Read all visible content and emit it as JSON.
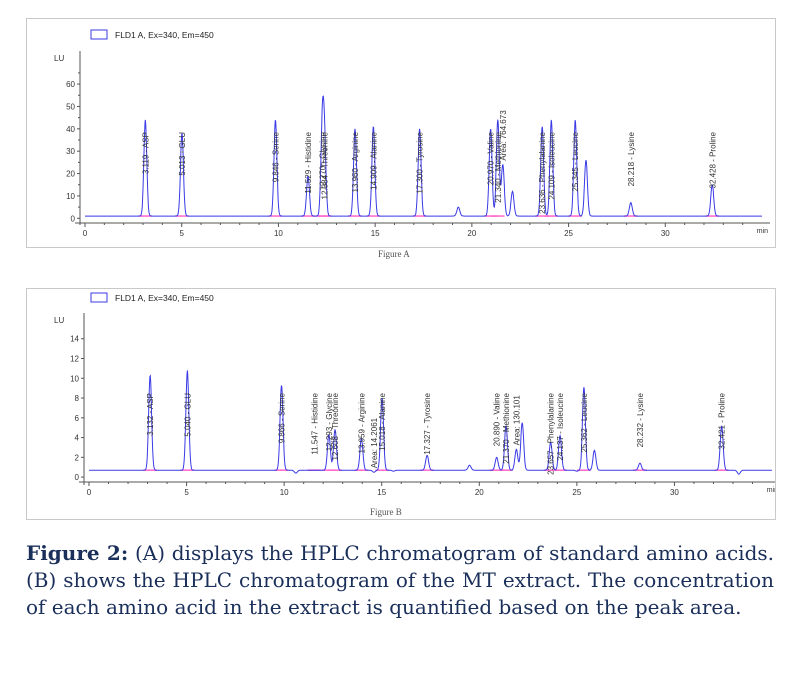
{
  "chart_data": [
    {
      "type": "line",
      "panel": "A",
      "legend": "FLD1 A, Ex=340, Em=450",
      "ylabel": "LU",
      "xlabel": "min",
      "xlim": [
        0,
        35
      ],
      "ylim": [
        -3,
        73
      ],
      "xticks": [
        0,
        5,
        10,
        15,
        20,
        25,
        30
      ],
      "yticks": [
        0,
        10,
        20,
        30,
        40,
        50,
        60
      ],
      "yticks_minor": [
        5,
        15,
        25,
        35,
        45,
        55,
        65
      ],
      "baseline": 1,
      "peaks": [
        {
          "x": 3.119,
          "y": 44,
          "label": "3.119 - ASP"
        },
        {
          "x": 5.013,
          "y": 38,
          "label": "5.013 - GLU"
        },
        {
          "x": 9.846,
          "y": 44,
          "label": "9.846 - Serine"
        },
        {
          "x": 11.529,
          "y": 19,
          "label": "11.529 - Histidine"
        },
        {
          "x": 12.27,
          "y": 41,
          "label": "12.270 - Glycine"
        },
        {
          "x": 12.384,
          "y": 32,
          "label": "12.384 - Threonine"
        },
        {
          "x": 13.96,
          "y": 40,
          "label": "13.960 - Arginine"
        },
        {
          "x": 14.909,
          "y": 41,
          "label": "14.909 - Alanine"
        },
        {
          "x": 17.3,
          "y": 40,
          "label": "17.300 - Tyrosine"
        },
        {
          "x": 19.3,
          "y": 5,
          "label": ""
        },
        {
          "x": 20.97,
          "y": 40,
          "label": "20.970 - Valine"
        },
        {
          "x": 21.34,
          "y": 44,
          "label": "21.340 - Methionine"
        },
        {
          "x": 21.6,
          "y": 24,
          "label": "Area: 764.673"
        },
        {
          "x": 22.1,
          "y": 12,
          "label": ""
        },
        {
          "x": 23.636,
          "y": 41,
          "label": "23.636 - Phenylalanine"
        },
        {
          "x": 24.109,
          "y": 44,
          "label": "24.109 - Isoleucine"
        },
        {
          "x": 25.345,
          "y": 44,
          "label": "25.345 - Leucine"
        },
        {
          "x": 25.9,
          "y": 26,
          "label": ""
        },
        {
          "x": 28.218,
          "y": 7,
          "label": "28.218 - Lysine"
        },
        {
          "x": 32.428,
          "y": 15,
          "label": "32.428 - Proline"
        }
      ]
    },
    {
      "type": "line",
      "panel": "B",
      "legend": "FLD1 A, Ex=340, Em=450",
      "ylabel": "LU",
      "xlabel": "min",
      "xlim": [
        0,
        35
      ],
      "ylim": [
        -0.8,
        16.2
      ],
      "xticks": [
        0,
        5,
        10,
        15,
        20,
        25,
        30
      ],
      "yticks": [
        0,
        2,
        4,
        6,
        8,
        10,
        12,
        14
      ],
      "yticks_minor": [],
      "baseline": 0.7,
      "peaks": [
        {
          "x": 3.132,
          "y": 10.3,
          "label": "3.132 - ASP"
        },
        {
          "x": 5.04,
          "y": 10.8,
          "label": "5.040 - GLU"
        },
        {
          "x": 9.866,
          "y": 9.3,
          "label": "9.866 - Serine"
        },
        {
          "x": 10.6,
          "y": 0.4,
          "label": ""
        },
        {
          "x": 11.547,
          "y": 0.7,
          "label": "11.547 - Histidine"
        },
        {
          "x": 12.293,
          "y": 4.3,
          "label": "12.293 - Glycine"
        },
        {
          "x": 12.608,
          "y": 4.8,
          "label": "12.608 - Threonine"
        },
        {
          "x": 13.959,
          "y": 3.9,
          "label": "13.959 - Arginine"
        },
        {
          "x": 14.6,
          "y": 0.5,
          "label": "Area: 14.2061"
        },
        {
          "x": 15.018,
          "y": 8.0,
          "label": "15.018 - Alanine"
        },
        {
          "x": 15.6,
          "y": 0.6,
          "label": ""
        },
        {
          "x": 17.327,
          "y": 2.2,
          "label": "17.327 - Tyrosine"
        },
        {
          "x": 19.5,
          "y": 1.2,
          "label": ""
        },
        {
          "x": 20.89,
          "y": 2.0,
          "label": "20.890 - Valine"
        },
        {
          "x": 21.37,
          "y": 5.2,
          "label": "21.370 - Methionine"
        },
        {
          "x": 21.9,
          "y": 2.8,
          "label": "Area: 130.101"
        },
        {
          "x": 22.2,
          "y": 5.5,
          "label": ""
        },
        {
          "x": 23.657,
          "y": 3.5,
          "label": "23.657 - Phenylalanine"
        },
        {
          "x": 24.137,
          "y": 4.2,
          "label": "24.137 - Isoleucine"
        },
        {
          "x": 25.0,
          "y": 0.6,
          "label": ""
        },
        {
          "x": 25.362,
          "y": 9.1,
          "label": "25.362 - Leucine"
        },
        {
          "x": 25.9,
          "y": 2.7,
          "label": ""
        },
        {
          "x": 28.232,
          "y": 1.4,
          "label": "28.232 - Lysine"
        },
        {
          "x": 32.421,
          "y": 5.2,
          "label": "32.421 - Proline"
        },
        {
          "x": 33.3,
          "y": 0.3,
          "label": ""
        }
      ]
    }
  ],
  "figure_label_a": "Figure A",
  "figure_label_b": "Figure B",
  "caption": {
    "lead": "Figure 2:",
    "text": " (A) displays the HPLC chromatogram of standard amino acids. (B) shows the HPLC chromatogram of the MT extract. The concentration of each amino acid in the extract is quantified based on the peak area."
  },
  "colors": {
    "trace": "#3a3ae6",
    "area_fill": "#ff66cc",
    "axis": "#555555",
    "caption": "#1a2f5a"
  }
}
